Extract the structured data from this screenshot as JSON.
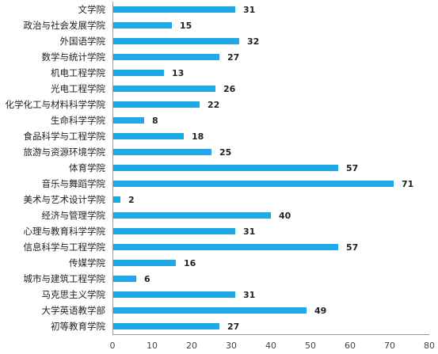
{
  "chart_data": {
    "type": "bar",
    "orientation": "horizontal",
    "categories": [
      "文学院",
      "政治与社会发展学院",
      "外国语学院",
      "数学与统计学院",
      "机电工程学院",
      "光电工程学院",
      "化学化工与材料科学学院",
      "生命科学学院",
      "食品科学与工程学院",
      "旅游与资源环境学院",
      "体育学院",
      "音乐与舞蹈学院",
      "美术与艺术设计学院",
      "经济与管理学院",
      "心理与教育科学学院",
      "信息科学与工程学院",
      "传媒学院",
      "城市与建筑工程学院",
      "马克思主义学院",
      "大学英语教学部",
      "初等教育学院"
    ],
    "values": [
      31,
      15,
      32,
      27,
      13,
      26,
      22,
      8,
      18,
      25,
      57,
      71,
      2,
      40,
      31,
      57,
      16,
      6,
      31,
      49,
      27
    ],
    "xlim": [
      0,
      80
    ],
    "xticks": [
      0,
      10,
      20,
      30,
      40,
      50,
      60,
      70,
      80
    ],
    "bar_color": "#1ea8e6",
    "grid": false,
    "data_labels": true
  }
}
